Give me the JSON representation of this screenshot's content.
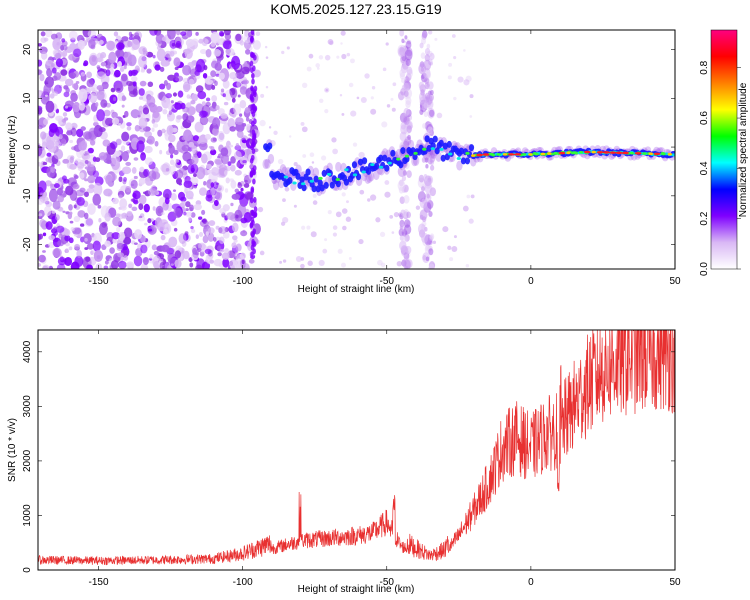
{
  "title": "KOM5.2025.127.23.15.G19",
  "chart_data": [
    {
      "type": "heatmap",
      "xlabel": "Height of straight line (km)",
      "ylabel": "Frequency (Hz)",
      "xlim": [
        -171,
        50
      ],
      "ylim": [
        -25,
        24
      ],
      "x_ticks": [
        -150,
        -100,
        -50,
        0,
        50
      ],
      "y_ticks": [
        -20,
        -10,
        0,
        10,
        20
      ],
      "colorbar": {
        "label": "Normalized spectral amplitude",
        "range": [
          0,
          0.95
        ],
        "ticks": [
          0.0,
          0.2,
          0.4,
          0.6,
          0.8
        ],
        "colormap": [
          "#ffffff",
          "#d9b8f5",
          "#7f00ff",
          "#0000ff",
          "#00ffff",
          "#00ff00",
          "#ffff00",
          "#ff7f00",
          "#ff0000",
          "#ff0080"
        ]
      },
      "trace": {
        "description_points": [
          [
            -90,
            -6
          ],
          [
            -75,
            -7
          ],
          [
            -60,
            -5
          ],
          [
            -45,
            -2
          ],
          [
            -35,
            0.5
          ],
          [
            -25,
            -2
          ],
          [
            -15,
            -1.5
          ],
          [
            0,
            -1.5
          ],
          [
            20,
            -1
          ],
          [
            50,
            -1.5
          ]
        ],
        "strong_segment_x": [
          -20,
          50
        ]
      }
    },
    {
      "type": "line",
      "xlabel": "Height of straight line (km)",
      "ylabel": "SNR (10 * v/v)",
      "xlim": [
        -171,
        50
      ],
      "ylim": [
        0,
        4400
      ],
      "x_ticks": [
        -150,
        -100,
        -50,
        0,
        50
      ],
      "y_ticks": [
        0,
        1000,
        2000,
        3000,
        4000
      ],
      "line_color": "#e83030",
      "envelope": [
        [
          -171,
          150
        ],
        [
          -150,
          140
        ],
        [
          -130,
          150
        ],
        [
          -110,
          170
        ],
        [
          -100,
          250
        ],
        [
          -90,
          400
        ],
        [
          -80,
          550
        ],
        [
          -70,
          600
        ],
        [
          -60,
          650
        ],
        [
          -55,
          700
        ],
        [
          -50,
          900
        ],
        [
          -45,
          450
        ],
        [
          -40,
          330
        ],
        [
          -35,
          220
        ],
        [
          -30,
          300
        ],
        [
          -25,
          650
        ],
        [
          -20,
          1100
        ],
        [
          -15,
          1600
        ],
        [
          -12,
          2000
        ],
        [
          -10,
          2300
        ],
        [
          -5,
          2500
        ],
        [
          0,
          2300
        ],
        [
          5,
          2550
        ],
        [
          10,
          2650
        ],
        [
          15,
          3100
        ],
        [
          20,
          3500
        ],
        [
          25,
          3800
        ],
        [
          30,
          3950
        ],
        [
          35,
          4050
        ],
        [
          40,
          4100
        ],
        [
          45,
          4150
        ],
        [
          50,
          4100
        ]
      ]
    }
  ]
}
